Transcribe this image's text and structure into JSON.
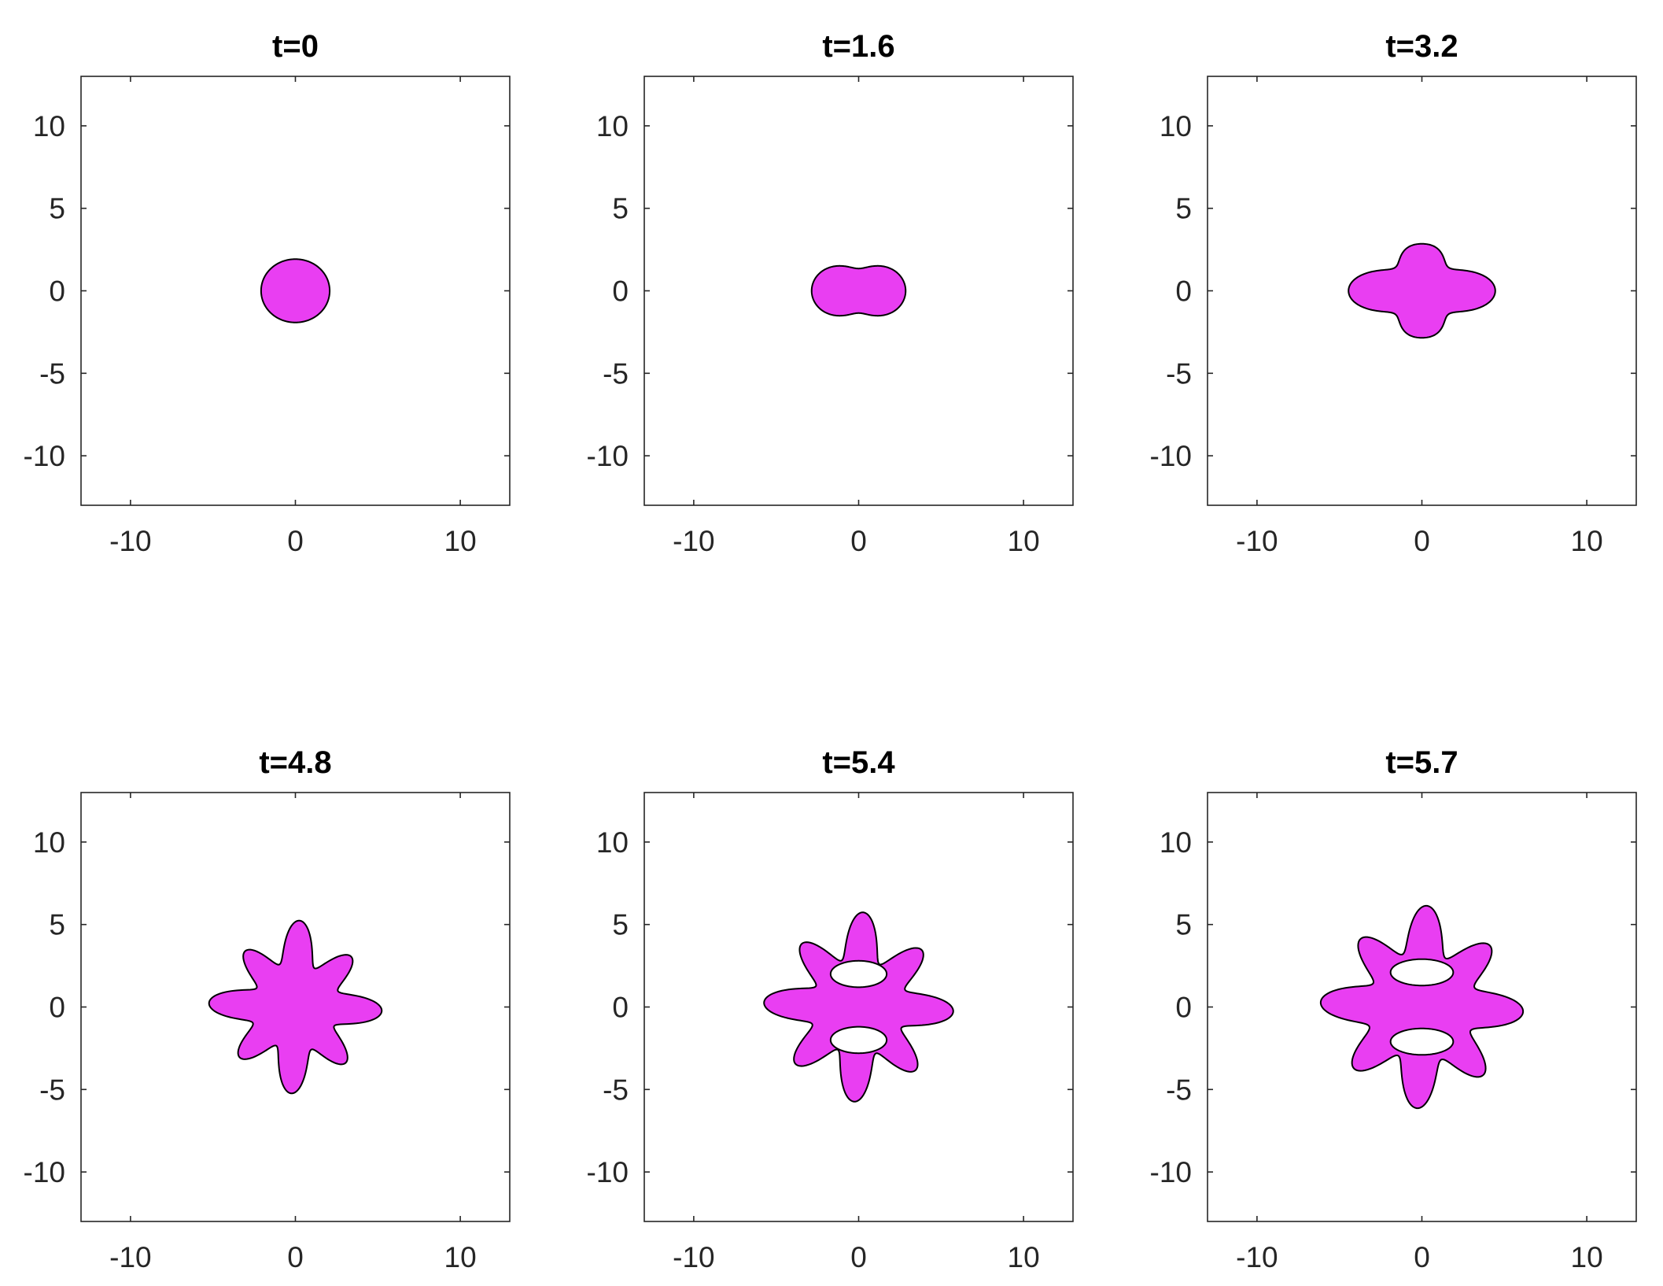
{
  "colors": {
    "shape_fill": "#e93ef2",
    "shape_stroke": "#000000",
    "axis": "#262626",
    "background": "#ffffff"
  },
  "chart_data": [
    {
      "type": "area",
      "title": "t=0",
      "xlim": [
        -13,
        13
      ],
      "ylim": [
        -13,
        13
      ],
      "xticks": [
        -10,
        0,
        10
      ],
      "yticks": [
        -10,
        -5,
        0,
        5,
        10
      ],
      "grid": false,
      "series": [
        {
          "radius_profile": {
            "base": 2.0,
            "modes": [
              [
                2,
                0.08,
                0
              ]
            ]
          }
        }
      ]
    },
    {
      "type": "area",
      "title": "t=1.6",
      "xlim": [
        -13,
        13
      ],
      "ylim": [
        -13,
        13
      ],
      "xticks": [
        -10,
        0,
        10
      ],
      "yticks": [
        -10,
        -5,
        0,
        5,
        10
      ],
      "grid": false,
      "series": [
        {
          "radius_profile": {
            "base": 2.1,
            "modes": [
              [
                2,
                0.75,
                0
              ]
            ]
          }
        }
      ]
    },
    {
      "type": "area",
      "title": "t=3.2",
      "xlim": [
        -13,
        13
      ],
      "ylim": [
        -13,
        13
      ],
      "xticks": [
        -10,
        0,
        10
      ],
      "yticks": [
        -10,
        -5,
        0,
        5,
        10
      ],
      "grid": false,
      "series": [
        {
          "radius_profile": {
            "base": 2.9,
            "modes": [
              [
                2,
                0.55,
                0
              ],
              [
                4,
                0.75,
                0
              ],
              [
                6,
                0.25,
                0
              ]
            ]
          }
        }
      ]
    },
    {
      "type": "area",
      "title": "t=4.8",
      "xlim": [
        -13,
        13
      ],
      "ylim": [
        -13,
        13
      ],
      "xticks": [
        -10,
        0,
        10
      ],
      "yticks": [
        -10,
        -5,
        0,
        5,
        10
      ],
      "grid": false,
      "series": [
        {
          "radius_profile": {
            "base": 3.8,
            "modes": [
              [
                4,
                0.35,
                0
              ],
              [
                8,
                1.1,
                0.3927
              ]
            ]
          }
        }
      ]
    },
    {
      "type": "area",
      "title": "t=5.4",
      "xlim": [
        -13,
        13
      ],
      "ylim": [
        -13,
        13
      ],
      "xticks": [
        -10,
        0,
        10
      ],
      "yticks": [
        -10,
        -5,
        0,
        5,
        10
      ],
      "grid": false,
      "series": [
        {
          "radius_profile": {
            "base": 4.2,
            "modes": [
              [
                4,
                0.3,
                0
              ],
              [
                8,
                1.25,
                0.3927
              ]
            ]
          }
        },
        {
          "hole": true,
          "center": [
            0,
            2.0
          ],
          "rx": 1.7,
          "ry": 0.8
        },
        {
          "hole": true,
          "center": [
            0,
            -2.0
          ],
          "rx": 1.7,
          "ry": 0.8
        }
      ]
    },
    {
      "type": "area",
      "title": "t=5.7",
      "xlim": [
        -13,
        13
      ],
      "ylim": [
        -13,
        13
      ],
      "xticks": [
        -10,
        0,
        10
      ],
      "yticks": [
        -10,
        -5,
        0,
        5,
        10
      ],
      "grid": false,
      "series": [
        {
          "radius_profile": {
            "base": 4.6,
            "modes": [
              [
                4,
                0.3,
                0
              ],
              [
                8,
                1.25,
                0.3927
              ]
            ]
          }
        },
        {
          "hole": true,
          "center": [
            0,
            2.1
          ],
          "rx": 1.9,
          "ry": 0.8
        },
        {
          "hole": true,
          "center": [
            0,
            -2.1
          ],
          "rx": 1.9,
          "ry": 0.8
        }
      ]
    }
  ]
}
